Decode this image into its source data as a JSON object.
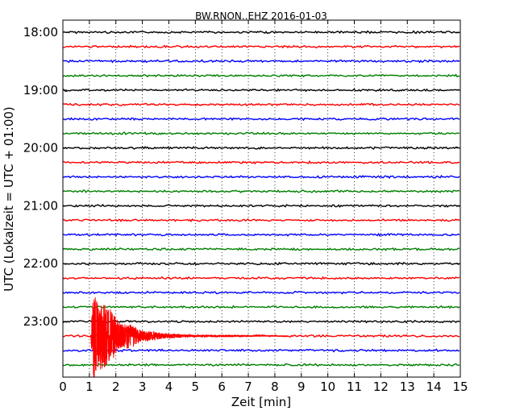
{
  "chart_data": {
    "type": "line",
    "title": "BW.RNON..EHZ 2016-01-03",
    "xlabel": "Zeit  [min]",
    "ylabel": "UTC (Lokalzeit = UTC + 01:00)",
    "xlim": [
      0,
      15
    ],
    "x_ticks": [
      "0",
      "1",
      "2",
      "3",
      "4",
      "5",
      "6",
      "7",
      "8",
      "9",
      "10",
      "11",
      "12",
      "13",
      "14",
      "15"
    ],
    "y_ticks": [
      "18:00",
      "19:00",
      "20:00",
      "21:00",
      "22:00",
      "23:00"
    ],
    "grid": "vertical dotted",
    "trace_colors": [
      "#000000",
      "#ff0000",
      "#0000ff",
      "#008000"
    ],
    "traces_start": "18:00",
    "trace_interval_min": 15,
    "trace_count": 24,
    "event": {
      "trace_start": "23:15",
      "onset_min": 1.05,
      "peak_min": 1.15,
      "coda_end_min": 8.5,
      "color": "#ff0000"
    }
  }
}
